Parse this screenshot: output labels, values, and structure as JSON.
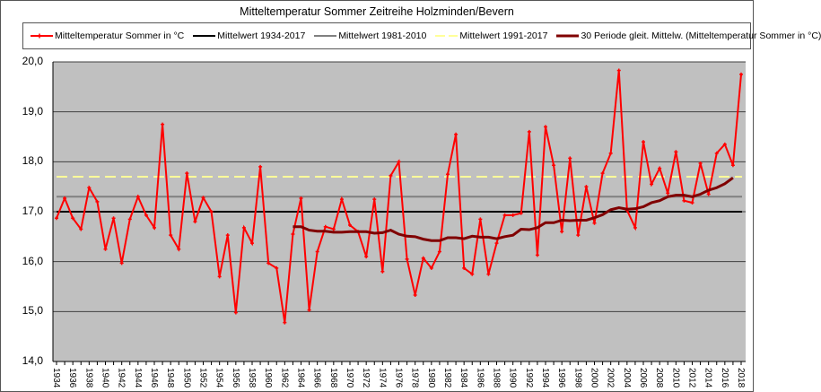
{
  "chart_data": {
    "type": "line",
    "title": "Mitteltemperatur Sommer Zeitreihe Holzminden/Bevern",
    "xlabel": "",
    "ylabel": "",
    "ylim": [
      14.0,
      20.0
    ],
    "yticks": [
      "14,0",
      "15,0",
      "16,0",
      "17,0",
      "18,0",
      "19,0",
      "20,0"
    ],
    "xtick_labels": [
      "1934",
      "1936",
      "1938",
      "1940",
      "1942",
      "1944",
      "1946",
      "1948",
      "1950",
      "1952",
      "1954",
      "1956",
      "1958",
      "1960",
      "1962",
      "1964",
      "1966",
      "1968",
      "1970",
      "1972",
      "1974",
      "1976",
      "1978",
      "1980",
      "1982",
      "1984",
      "1986",
      "1988",
      "1990",
      "1992",
      "1994",
      "1996",
      "1998",
      "2000",
      "2002",
      "2004",
      "2006",
      "2008",
      "2010",
      "2012",
      "2014",
      "2016",
      "2018"
    ],
    "grid": true,
    "legend_position": "top",
    "x": [
      1934,
      1935,
      1936,
      1937,
      1938,
      1939,
      1940,
      1941,
      1942,
      1943,
      1944,
      1945,
      1946,
      1947,
      1948,
      1949,
      1950,
      1951,
      1952,
      1953,
      1954,
      1955,
      1956,
      1957,
      1958,
      1959,
      1960,
      1961,
      1962,
      1963,
      1964,
      1965,
      1966,
      1967,
      1968,
      1969,
      1970,
      1971,
      1972,
      1973,
      1974,
      1975,
      1976,
      1977,
      1978,
      1979,
      1980,
      1981,
      1982,
      1983,
      1984,
      1985,
      1986,
      1987,
      1988,
      1989,
      1990,
      1991,
      1992,
      1993,
      1994,
      1995,
      1996,
      1997,
      1998,
      1999,
      2000,
      2001,
      2002,
      2003,
      2004,
      2005,
      2006,
      2007,
      2008,
      2009,
      2010,
      2011,
      2012,
      2013,
      2014,
      2015,
      2016,
      2017,
      2018
    ],
    "series": [
      {
        "name": "Mitteltemperatur Sommer in °C",
        "color": "#ff0000",
        "style": "line-markers",
        "values": [
          16.87,
          17.27,
          16.87,
          16.65,
          17.48,
          17.2,
          16.25,
          16.87,
          15.97,
          16.85,
          17.3,
          16.93,
          16.68,
          18.75,
          16.53,
          16.25,
          17.77,
          16.8,
          17.28,
          17.0,
          15.7,
          16.53,
          14.98,
          16.68,
          16.37,
          17.9,
          15.97,
          15.87,
          14.78,
          16.55,
          17.27,
          15.03,
          16.2,
          16.7,
          16.65,
          17.25,
          16.73,
          16.6,
          16.1,
          17.25,
          15.8,
          17.72,
          18.0,
          16.05,
          15.33,
          16.07,
          15.87,
          16.2,
          17.75,
          18.55,
          15.87,
          15.75,
          16.85,
          15.75,
          16.37,
          16.93,
          16.93,
          16.97,
          18.6,
          16.13,
          18.7,
          17.93,
          16.6,
          18.07,
          16.53,
          17.5,
          16.77,
          17.77,
          18.17,
          19.83,
          17.03,
          16.68,
          18.4,
          17.55,
          17.87,
          17.37,
          18.2,
          17.22,
          17.18,
          17.97,
          17.35,
          18.17,
          18.35,
          17.93,
          19.75
        ]
      },
      {
        "name": "Mittelwert 1934-2017",
        "color": "#000000",
        "style": "constant",
        "values": [
          17.0
        ]
      },
      {
        "name": "Mittelwert 1981-2010",
        "color": "#808080",
        "style": "constant",
        "values": [
          17.3
        ]
      },
      {
        "name": "Mittelwert 1991-2017",
        "color": "#ffff99",
        "style": "dashed-constant",
        "values": [
          17.7
        ]
      },
      {
        "name": "30 Periode gleit. Mittelw. (Mitteltemperatur Sommer in °C)",
        "color": "#800000",
        "style": "moving-average",
        "start_year": 1963,
        "values": [
          16.7,
          16.7,
          16.63,
          16.61,
          16.61,
          16.59,
          16.59,
          16.6,
          16.6,
          16.6,
          16.57,
          16.58,
          16.63,
          16.55,
          16.51,
          16.5,
          16.45,
          16.42,
          16.42,
          16.48,
          16.48,
          16.46,
          16.51,
          16.49,
          16.49,
          16.46,
          16.5,
          16.53,
          16.65,
          16.64,
          16.68,
          16.78,
          16.78,
          16.83,
          16.82,
          16.83,
          16.83,
          16.88,
          16.94,
          17.04,
          17.08,
          17.05,
          17.06,
          17.1,
          17.18,
          17.22,
          17.3,
          17.33,
          17.33,
          17.3,
          17.35,
          17.43,
          17.48,
          17.56,
          17.68
        ]
      }
    ]
  },
  "colors": {
    "plot_background": "#c0c0c0",
    "gridline": "#404040"
  }
}
